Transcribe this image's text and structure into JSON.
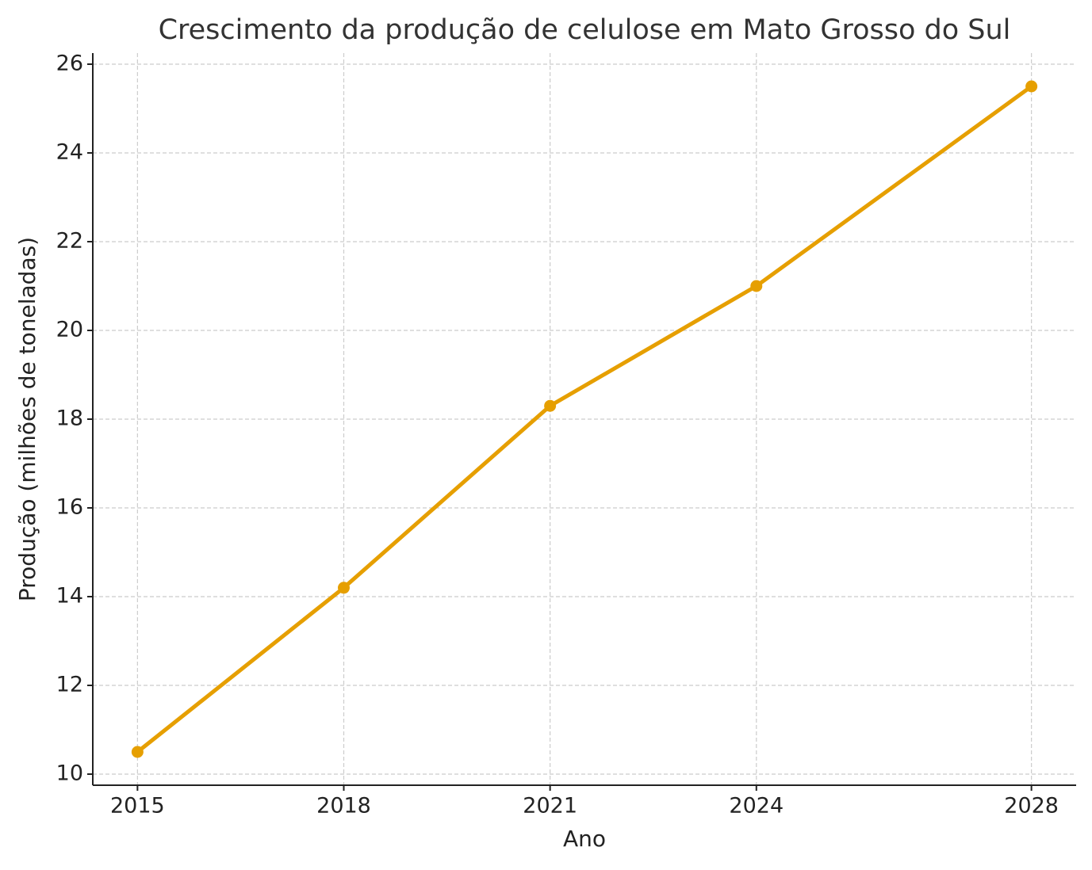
{
  "chart_data": {
    "type": "line",
    "title": "Crescimento da produção de celulose em Mato Grosso do Sul",
    "x_label": "Ano",
    "y_label": "Produção (milhões de toneladas)",
    "x": [
      2015,
      2018,
      2021,
      2024,
      2028
    ],
    "values": [
      10.5,
      14.2,
      18.3,
      21.0,
      25.5
    ],
    "color": "#e69f00",
    "xlim": [
      2014.35,
      2028.65
    ],
    "ylim": [
      9.75,
      26.25
    ],
    "xticks": [
      2015,
      2018,
      2021,
      2024,
      2028
    ],
    "yticks": [
      10,
      12,
      14,
      16,
      18,
      20,
      22,
      24,
      26
    ],
    "grid": true
  }
}
